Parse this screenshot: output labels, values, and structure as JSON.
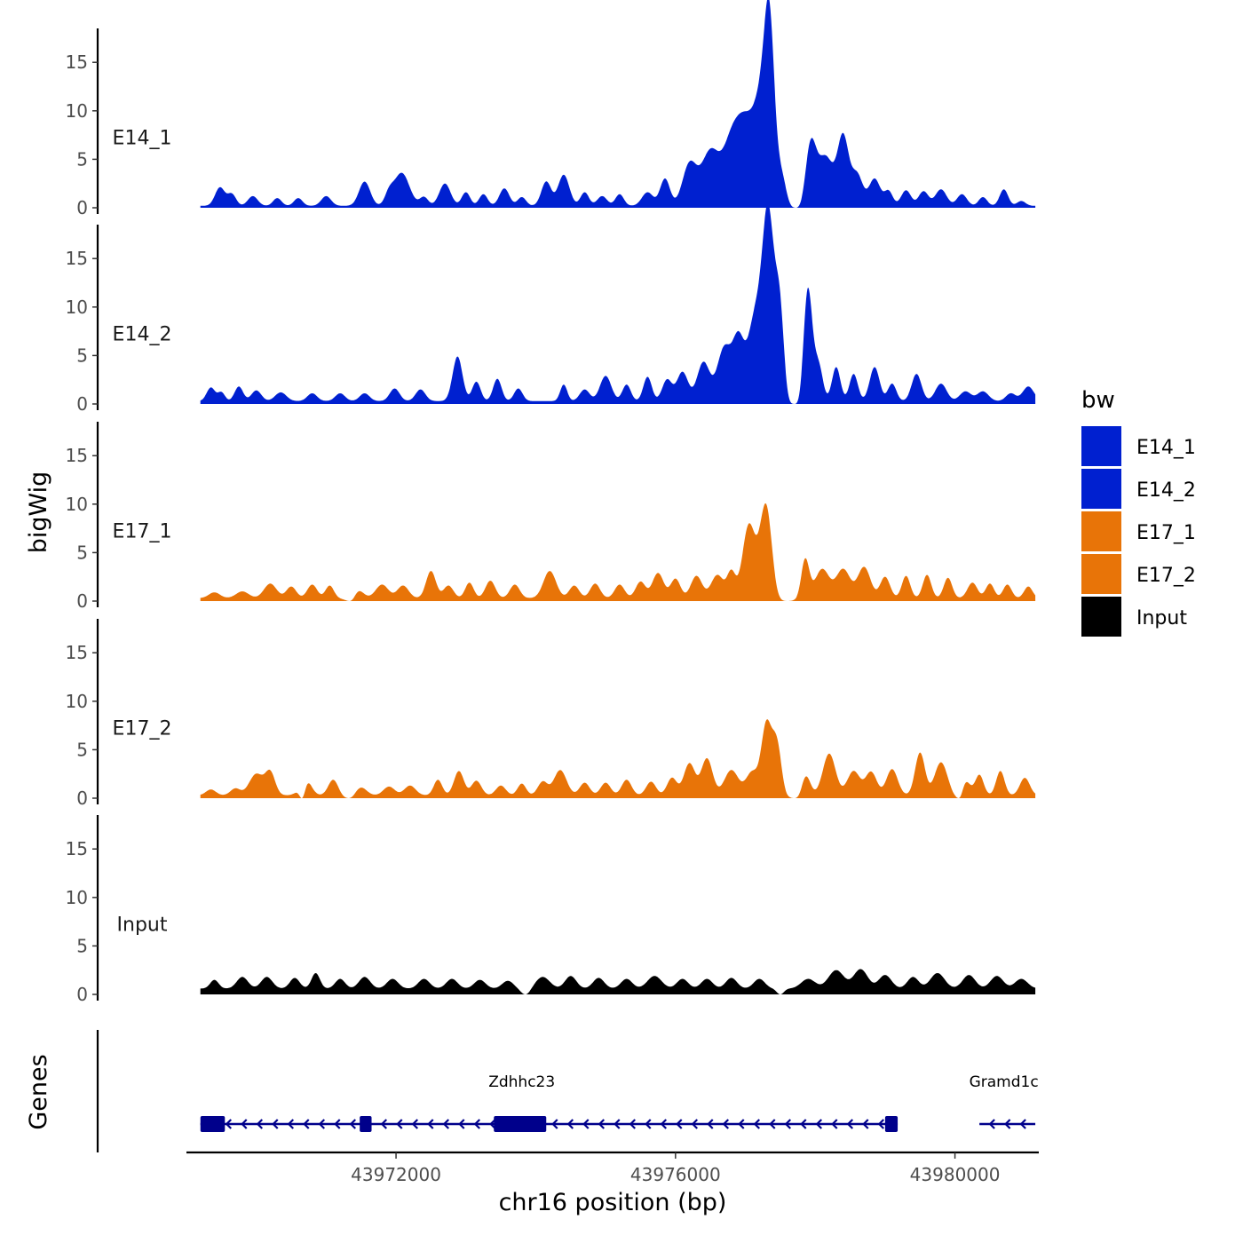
{
  "chart_data": {
    "type": "area",
    "ylabel": "bigWig",
    "xlabel": "chr16 position (bp)",
    "ylim": [
      0,
      18.5
    ],
    "xlim": [
      43969000,
      43981200
    ],
    "yticks": [
      0,
      5,
      10,
      15
    ],
    "xticks": [
      43972000,
      43976000,
      43980000
    ],
    "xtick_labels": [
      "43972000",
      "43976000",
      "43980000"
    ],
    "data_range": [
      43969200,
      43981150
    ],
    "legend": {
      "title": "bw",
      "position": "right",
      "entries": [
        {
          "name": "E14_1",
          "color": "#0020D0"
        },
        {
          "name": "E14_2",
          "color": "#0020D0"
        },
        {
          "name": "E17_1",
          "color": "#E87408"
        },
        {
          "name": "E17_2",
          "color": "#E87408"
        },
        {
          "name": "Input",
          "color": "#000000"
        }
      ]
    },
    "series": [
      {
        "name": "E14_1",
        "color": "#0020D0",
        "base": 0.2,
        "peaks": [
          [
            43969480,
            1.9,
            70
          ],
          [
            43969650,
            1.2,
            60
          ],
          [
            43969950,
            1.0,
            70
          ],
          [
            43970300,
            0.8,
            60
          ],
          [
            43970600,
            0.8,
            60
          ],
          [
            43971000,
            1.0,
            70
          ],
          [
            43971550,
            2.5,
            80
          ],
          [
            43971900,
            1.1,
            60
          ],
          [
            43972080,
            3.4,
            110
          ],
          [
            43972400,
            0.9,
            60
          ],
          [
            43972700,
            2.3,
            80
          ],
          [
            43973000,
            1.4,
            60
          ],
          [
            43973250,
            1.2,
            60
          ],
          [
            43973550,
            1.8,
            70
          ],
          [
            43973800,
            0.9,
            60
          ],
          [
            43974150,
            2.5,
            70
          ],
          [
            43974400,
            3.2,
            80
          ],
          [
            43974700,
            1.4,
            60
          ],
          [
            43974950,
            1.0,
            70
          ],
          [
            43975200,
            1.2,
            60
          ],
          [
            43975600,
            1.4,
            80
          ],
          [
            43975850,
            2.8,
            70
          ],
          [
            43976200,
            4.2,
            100
          ],
          [
            43976500,
            5.6,
            130
          ],
          [
            43976800,
            6.0,
            120
          ],
          [
            43977000,
            7.0,
            120
          ],
          [
            43977250,
            11.0,
            120
          ],
          [
            43977350,
            13.5,
            70
          ],
          [
            43977550,
            5.0,
            80
          ],
          [
            43977900,
            10.0,
            90
          ],
          [
            43978150,
            5.0,
            110
          ],
          [
            43978400,
            7.0,
            80
          ],
          [
            43978600,
            3.2,
            80
          ],
          [
            43978850,
            2.8,
            80
          ],
          [
            43979050,
            1.5,
            60
          ],
          [
            43979300,
            1.6,
            70
          ],
          [
            43979550,
            1.5,
            70
          ],
          [
            43979800,
            1.7,
            80
          ],
          [
            43980100,
            1.2,
            70
          ],
          [
            43980400,
            0.9,
            60
          ],
          [
            43980700,
            1.7,
            60
          ],
          [
            43980950,
            0.5,
            60
          ]
        ],
        "dips": [
          [
            43977720,
            140
          ]
        ]
      },
      {
        "name": "E14_2",
        "color": "#0020D0",
        "base": 0.3,
        "peaks": [
          [
            43969350,
            1.4,
            60
          ],
          [
            43969500,
            0.9,
            50
          ],
          [
            43969750,
            1.5,
            60
          ],
          [
            43970000,
            1.1,
            70
          ],
          [
            43970350,
            0.9,
            80
          ],
          [
            43970800,
            0.8,
            70
          ],
          [
            43971200,
            0.8,
            70
          ],
          [
            43971550,
            0.8,
            70
          ],
          [
            43971980,
            1.3,
            70
          ],
          [
            43972350,
            1.2,
            70
          ],
          [
            43972880,
            4.6,
            70
          ],
          [
            43973150,
            2.0,
            60
          ],
          [
            43973450,
            2.3,
            60
          ],
          [
            43973750,
            1.3,
            60
          ],
          [
            43974400,
            1.7,
            50
          ],
          [
            43974700,
            1.2,
            70
          ],
          [
            43975000,
            2.6,
            80
          ],
          [
            43975300,
            1.7,
            60
          ],
          [
            43975600,
            2.5,
            60
          ],
          [
            43975880,
            2.2,
            70
          ],
          [
            43976100,
            3.0,
            80
          ],
          [
            43976400,
            4.0,
            90
          ],
          [
            43976700,
            5.5,
            100
          ],
          [
            43976900,
            5.8,
            80
          ],
          [
            43977150,
            9.0,
            110
          ],
          [
            43977330,
            17.5,
            80
          ],
          [
            43977500,
            11.0,
            70
          ],
          [
            43977880,
            14.0,
            70
          ],
          [
            43978050,
            3.5,
            60
          ],
          [
            43978300,
            3.5,
            60
          ],
          [
            43978550,
            2.8,
            60
          ],
          [
            43978850,
            3.5,
            70
          ],
          [
            43979100,
            1.8,
            60
          ],
          [
            43979450,
            2.8,
            70
          ],
          [
            43979800,
            1.8,
            80
          ],
          [
            43980150,
            1.0,
            80
          ],
          [
            43980400,
            1.0,
            80
          ],
          [
            43980800,
            0.8,
            70
          ],
          [
            43981050,
            1.5,
            80
          ]
        ],
        "dips": [
          [
            43977700,
            100
          ]
        ]
      },
      {
        "name": "E17_1",
        "color": "#E87408",
        "base": 0.3,
        "peaks": [
          [
            43969400,
            0.6,
            80
          ],
          [
            43969800,
            0.7,
            90
          ],
          [
            43970200,
            1.5,
            90
          ],
          [
            43970500,
            1.2,
            70
          ],
          [
            43970800,
            1.4,
            70
          ],
          [
            43971050,
            1.3,
            60
          ],
          [
            43971450,
            0.9,
            80
          ],
          [
            43971800,
            1.4,
            90
          ],
          [
            43972100,
            1.3,
            80
          ],
          [
            43972500,
            2.8,
            70
          ],
          [
            43972750,
            1.3,
            70
          ],
          [
            43973050,
            1.6,
            60
          ],
          [
            43973350,
            1.8,
            70
          ],
          [
            43973700,
            1.4,
            70
          ],
          [
            43974200,
            2.8,
            90
          ],
          [
            43974550,
            1.3,
            70
          ],
          [
            43974850,
            1.5,
            70
          ],
          [
            43975200,
            1.4,
            70
          ],
          [
            43975500,
            1.7,
            70
          ],
          [
            43975750,
            2.6,
            80
          ],
          [
            43976000,
            2.0,
            70
          ],
          [
            43976300,
            2.3,
            80
          ],
          [
            43976600,
            2.4,
            90
          ],
          [
            43976800,
            2.6,
            60
          ],
          [
            43977050,
            7.5,
            90
          ],
          [
            43977300,
            10.0,
            90
          ],
          [
            43977850,
            4.5,
            60
          ],
          [
            43978100,
            3.0,
            100
          ],
          [
            43978400,
            3.0,
            100
          ],
          [
            43978700,
            3.2,
            90
          ],
          [
            43979000,
            2.2,
            70
          ],
          [
            43979300,
            2.3,
            60
          ],
          [
            43979600,
            2.4,
            60
          ],
          [
            43979900,
            2.1,
            60
          ],
          [
            43980250,
            1.6,
            70
          ],
          [
            43980500,
            1.5,
            60
          ],
          [
            43980750,
            1.4,
            60
          ],
          [
            43981050,
            1.2,
            60
          ]
        ],
        "dips": [
          [
            43971330,
            70
          ],
          [
            43977600,
            120
          ]
        ]
      },
      {
        "name": "E17_2",
        "color": "#E87408",
        "base": 0.3,
        "peaks": [
          [
            43969350,
            0.6,
            70
          ],
          [
            43969700,
            0.7,
            70
          ],
          [
            43970000,
            2.2,
            100
          ],
          [
            43970200,
            2.3,
            70
          ],
          [
            43970700,
            1.8,
            80
          ],
          [
            43971100,
            1.6,
            70
          ],
          [
            43971500,
            0.8,
            80
          ],
          [
            43971900,
            0.9,
            80
          ],
          [
            43972200,
            1.0,
            80
          ],
          [
            43972600,
            1.6,
            60
          ],
          [
            43972900,
            2.5,
            70
          ],
          [
            43973150,
            1.5,
            70
          ],
          [
            43973500,
            1.0,
            70
          ],
          [
            43973800,
            1.2,
            60
          ],
          [
            43974100,
            1.4,
            70
          ],
          [
            43974350,
            2.6,
            90
          ],
          [
            43974700,
            1.3,
            70
          ],
          [
            43975000,
            1.3,
            70
          ],
          [
            43975300,
            1.6,
            70
          ],
          [
            43975650,
            1.4,
            70
          ],
          [
            43975950,
            1.8,
            70
          ],
          [
            43976200,
            3.3,
            80
          ],
          [
            43976450,
            3.8,
            80
          ],
          [
            43976800,
            2.6,
            100
          ],
          [
            43977100,
            2.4,
            90
          ],
          [
            43977300,
            7.0,
            70
          ],
          [
            43977450,
            5.5,
            70
          ],
          [
            43977850,
            2.5,
            70
          ],
          [
            43978200,
            4.3,
            90
          ],
          [
            43978550,
            2.5,
            90
          ],
          [
            43978800,
            2.4,
            80
          ],
          [
            43979100,
            2.7,
            80
          ],
          [
            43979500,
            4.4,
            70
          ],
          [
            43979800,
            3.4,
            90
          ],
          [
            43980150,
            1.5,
            70
          ],
          [
            43980350,
            2.1,
            60
          ],
          [
            43980650,
            2.5,
            60
          ],
          [
            43981000,
            1.8,
            70
          ]
        ],
        "dips": [
          [
            43970650,
            50
          ],
          [
            43971320,
            60
          ],
          [
            43977700,
            90
          ],
          [
            43980050,
            50
          ]
        ]
      },
      {
        "name": "Input",
        "color": "#000000",
        "base": 0.6,
        "peaks": [
          [
            43969400,
            0.9,
            60
          ],
          [
            43969800,
            1.2,
            80
          ],
          [
            43970150,
            1.2,
            80
          ],
          [
            43970550,
            1.1,
            70
          ],
          [
            43970850,
            1.6,
            60
          ],
          [
            43971200,
            1.0,
            70
          ],
          [
            43971550,
            1.2,
            80
          ],
          [
            43971950,
            1.0,
            80
          ],
          [
            43972400,
            1.0,
            80
          ],
          [
            43972800,
            1.0,
            80
          ],
          [
            43973200,
            0.9,
            80
          ],
          [
            43973600,
            0.8,
            80
          ],
          [
            43974100,
            1.2,
            100
          ],
          [
            43974500,
            1.3,
            80
          ],
          [
            43974900,
            1.1,
            80
          ],
          [
            43975300,
            1.0,
            80
          ],
          [
            43975700,
            1.3,
            100
          ],
          [
            43976100,
            1.0,
            80
          ],
          [
            43976450,
            1.0,
            80
          ],
          [
            43976800,
            1.1,
            80
          ],
          [
            43977200,
            1.0,
            80
          ],
          [
            43977900,
            1.0,
            100
          ],
          [
            43978300,
            1.9,
            110
          ],
          [
            43978650,
            2.0,
            100
          ],
          [
            43979000,
            1.4,
            90
          ],
          [
            43979400,
            1.2,
            80
          ],
          [
            43979750,
            1.6,
            100
          ],
          [
            43980200,
            1.4,
            90
          ],
          [
            43980600,
            1.3,
            90
          ],
          [
            43980950,
            1.0,
            90
          ]
        ],
        "dips": [
          [
            43973850,
            60
          ],
          [
            43977500,
            50
          ]
        ]
      }
    ],
    "genes_track": {
      "label": "Genes",
      "genes": [
        {
          "name": "Zdhhc23",
          "start": 43969200,
          "end": 43979180,
          "strand": "-",
          "label_pos": 43973800,
          "exons": [
            [
              43969200,
              43969550
            ],
            [
              43971480,
              43971650
            ],
            [
              43973400,
              43974150
            ],
            [
              43979000,
              43979180
            ]
          ]
        },
        {
          "name": "Gramd1c",
          "start": 43980350,
          "end": 43981150,
          "strand": "-",
          "label_pos": 43980700,
          "exons": []
        }
      ]
    }
  }
}
